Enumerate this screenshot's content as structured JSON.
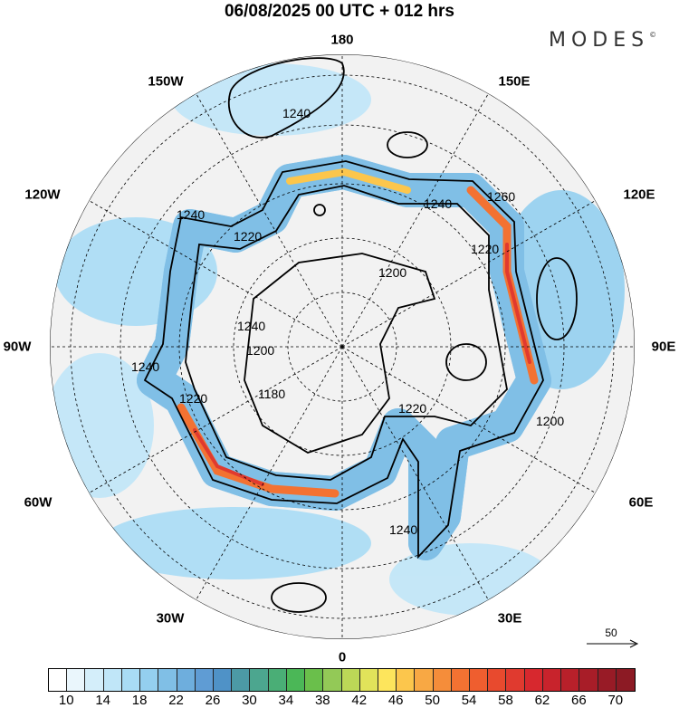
{
  "title": "06/08/2025  00 UTC  + 012 hrs",
  "logo": {
    "text": "MODES",
    "mark": "©"
  },
  "longitude_labels": [
    {
      "id": "180",
      "text": "180"
    },
    {
      "id": "150e",
      "text": "150E"
    },
    {
      "id": "120e",
      "text": "120E"
    },
    {
      "id": "90e",
      "text": "90E"
    },
    {
      "id": "60e",
      "text": "60E"
    },
    {
      "id": "30e",
      "text": "30E"
    },
    {
      "id": "0",
      "text": "0"
    },
    {
      "id": "30w",
      "text": "30W"
    },
    {
      "id": "60w",
      "text": "60W"
    },
    {
      "id": "90w",
      "text": "90W"
    },
    {
      "id": "120w",
      "text": "120W"
    },
    {
      "id": "150w",
      "text": "150W"
    }
  ],
  "contour_labels": [
    "1240",
    "1240",
    "1220",
    "1260",
    "1240",
    "1220",
    "1200",
    "1240",
    "1200",
    "1180",
    "1220",
    "1240",
    "1220",
    "1200",
    "1240"
  ],
  "vector_reference": {
    "value": "50"
  },
  "colorbar": {
    "labels": [
      "10",
      "14",
      "18",
      "22",
      "26",
      "30",
      "34",
      "38",
      "42",
      "46",
      "50",
      "54",
      "58",
      "62",
      "66",
      "70"
    ],
    "colors": [
      "#ffffff",
      "#eaf6fc",
      "#d4eefa",
      "#c0e6f8",
      "#a9dcf5",
      "#94cfef",
      "#80bfe6",
      "#6eaedd",
      "#5f9cd4",
      "#4f92c7",
      "#4c9aa5",
      "#4ca68f",
      "#4aae76",
      "#4bb757",
      "#6abf4b",
      "#93c957",
      "#bcd857",
      "#e1e35a",
      "#fde55c",
      "#fcc64c",
      "#f8a844",
      "#f58d3a",
      "#f37232",
      "#ef5e2f",
      "#e84a2e",
      "#e03a2f",
      "#d7282e",
      "#c8232c",
      "#b8202a",
      "#a81d28",
      "#981b26",
      "#8c1a24"
    ]
  }
}
